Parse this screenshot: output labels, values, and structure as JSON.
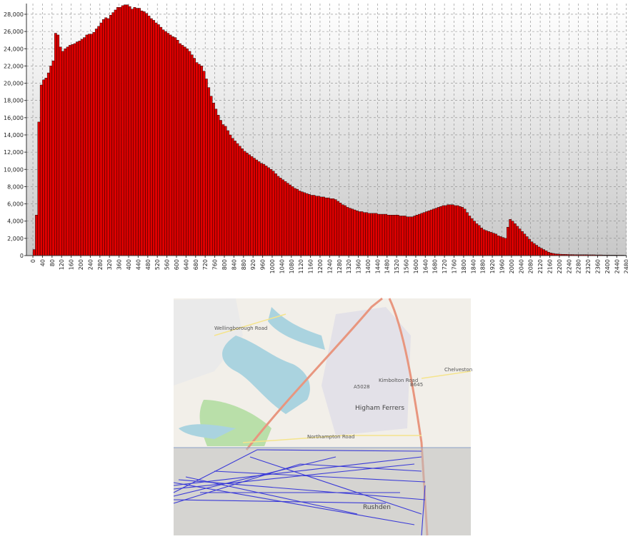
{
  "chart_data": {
    "type": "histogram",
    "bins": [
      0,
      10,
      20,
      30,
      40,
      50,
      60,
      70,
      80,
      90,
      100,
      110,
      120,
      130,
      140,
      150,
      160,
      170,
      180,
      190,
      200,
      210,
      220,
      230,
      240,
      250,
      260,
      270,
      280,
      290,
      300,
      310,
      320,
      330,
      340,
      350,
      360,
      370,
      380,
      390,
      400,
      410,
      420,
      430,
      440,
      450,
      460,
      470,
      480,
      490,
      500,
      510,
      520,
      530,
      540,
      550,
      560,
      570,
      580,
      590,
      600,
      610,
      620,
      630,
      640,
      650,
      660,
      670,
      680,
      690,
      700,
      710,
      720,
      730,
      740,
      750,
      760,
      770,
      780,
      790,
      800,
      810,
      820,
      830,
      840,
      850,
      860,
      870,
      880,
      890,
      900,
      910,
      920,
      930,
      940,
      950,
      960,
      970,
      980,
      990,
      1000,
      1010,
      1020,
      1030,
      1040,
      1050,
      1060,
      1070,
      1080,
      1090,
      1100,
      1110,
      1120,
      1130,
      1140,
      1150,
      1160,
      1170,
      1180,
      1190,
      1200,
      1210,
      1220,
      1230,
      1240,
      1250,
      1260,
      1270,
      1280,
      1290,
      1300,
      1310,
      1320,
      1330,
      1340,
      1350,
      1360,
      1370,
      1380,
      1390,
      1400,
      1410,
      1420,
      1430,
      1440,
      1450,
      1460,
      1470,
      1480,
      1490,
      1500,
      1510,
      1520,
      1530,
      1540,
      1550,
      1560,
      1570,
      1580,
      1590,
      1600,
      1610,
      1620,
      1630,
      1640,
      1650,
      1660,
      1670,
      1680,
      1690,
      1700,
      1710,
      1720,
      1730,
      1740,
      1750,
      1760,
      1770,
      1780,
      1790,
      1800,
      1810,
      1820,
      1830,
      1840,
      1850,
      1860,
      1870,
      1880,
      1890,
      1900,
      1910,
      1920,
      1930,
      1940,
      1950,
      1960,
      1970,
      1980,
      1990,
      2000,
      2010,
      2020,
      2030,
      2040,
      2050,
      2060,
      2070,
      2080,
      2090,
      2100,
      2110,
      2120,
      2130,
      2140,
      2150,
      2160,
      2170,
      2180,
      2190,
      2200,
      2210,
      2220,
      2230,
      2240,
      2250,
      2260,
      2270,
      2280,
      2290,
      2300,
      2310,
      2320,
      2330,
      2340,
      2350,
      2360,
      2370,
      2380,
      2390,
      2400,
      2410,
      2420,
      2430,
      2440,
      2450,
      2460,
      2470,
      2480
    ],
    "values": [
      700,
      4700,
      15500,
      19800,
      20400,
      20600,
      21200,
      22000,
      22600,
      25800,
      25600,
      24200,
      23700,
      24000,
      24200,
      24400,
      24500,
      24600,
      24800,
      24900,
      25100,
      25300,
      25600,
      25700,
      25700,
      25900,
      26300,
      26600,
      27000,
      27400,
      27600,
      27500,
      27900,
      28200,
      28500,
      28800,
      28800,
      29000,
      29100,
      29100,
      28900,
      28600,
      28800,
      28700,
      28700,
      28400,
      28300,
      28100,
      27800,
      27500,
      27300,
      27000,
      26800,
      26500,
      26200,
      26000,
      25800,
      25600,
      25400,
      25300,
      25000,
      24600,
      24400,
      24200,
      24000,
      23700,
      23300,
      22900,
      22400,
      22200,
      22000,
      21400,
      20500,
      19500,
      18500,
      17700,
      17000,
      16300,
      15700,
      15200,
      15000,
      14500,
      14000,
      13600,
      13300,
      13000,
      12700,
      12400,
      12100,
      11900,
      11700,
      11500,
      11300,
      11100,
      10900,
      10700,
      10600,
      10400,
      10200,
      10000,
      9800,
      9500,
      9200,
      9000,
      8800,
      8600,
      8400,
      8200,
      8000,
      7800,
      7700,
      7500,
      7400,
      7300,
      7200,
      7100,
      7000,
      7000,
      6900,
      6900,
      6800,
      6800,
      6700,
      6700,
      6600,
      6600,
      6500,
      6300,
      6100,
      5900,
      5800,
      5600,
      5500,
      5400,
      5300,
      5200,
      5100,
      5100,
      5000,
      5000,
      4900,
      4900,
      4900,
      4900,
      4800,
      4800,
      4800,
      4800,
      4700,
      4700,
      4700,
      4700,
      4700,
      4600,
      4600,
      4600,
      4500,
      4500,
      4500,
      4600,
      4700,
      4800,
      4900,
      5000,
      5100,
      5200,
      5300,
      5400,
      5500,
      5600,
      5700,
      5800,
      5800,
      5900,
      5900,
      5900,
      5800,
      5800,
      5700,
      5600,
      5400,
      5000,
      4600,
      4300,
      4000,
      3700,
      3500,
      3200,
      3000,
      2900,
      2800,
      2700,
      2600,
      2500,
      2300,
      2200,
      2100,
      2000,
      3300,
      4200,
      4000,
      3700,
      3400,
      3100,
      2800,
      2500,
      2200,
      1900,
      1600,
      1400,
      1200,
      1000,
      850,
      700,
      550,
      400,
      300,
      250,
      200,
      180,
      160,
      150,
      140,
      130,
      120,
      120,
      110,
      110,
      100,
      100,
      100,
      100,
      90,
      90,
      90,
      80,
      80,
      80,
      70,
      70,
      70,
      60,
      60,
      60,
      50,
      50,
      50,
      40
    ],
    "color": "#e00000",
    "xlim": [
      -27,
      2481
    ],
    "ylim": [
      0,
      29240
    ],
    "xticks": [
      0,
      40,
      80,
      120,
      160,
      200,
      240,
      280,
      320,
      360,
      400,
      440,
      480,
      520,
      560,
      600,
      640,
      680,
      720,
      760,
      800,
      840,
      880,
      920,
      960,
      1000,
      1040,
      1080,
      1120,
      1160,
      1200,
      1240,
      1280,
      1320,
      1360,
      1400,
      1440,
      1480,
      1520,
      1560,
      1600,
      1640,
      1680,
      1720,
      1760,
      1800,
      1840,
      1880,
      1920,
      1960,
      2000,
      2040,
      2080,
      2120,
      2160,
      2200,
      2240,
      2280,
      2320,
      2360,
      2400,
      2440,
      2480
    ],
    "yticks": [
      0,
      {
        "value": 2000,
        "label": "2,000"
      },
      {
        "value": 4000,
        "label": "4,000"
      },
      {
        "value": 6000,
        "label": "6,000"
      },
      {
        "value": 8000,
        "label": "8,000"
      },
      {
        "value": 10000,
        "label": "10,000"
      },
      {
        "value": 12000,
        "label": "12,000"
      },
      {
        "value": 14000,
        "label": "14,000"
      },
      {
        "value": 16000,
        "label": "16,000"
      },
      {
        "value": 18000,
        "label": "18,000"
      },
      {
        "value": 20000,
        "label": "20,000"
      },
      {
        "value": 22000,
        "label": "22,000"
      },
      {
        "value": 24000,
        "label": "24,000"
      },
      {
        "value": 26000,
        "label": "26,000"
      },
      {
        "value": 28000,
        "label": "28,000"
      }
    ],
    "grid": true
  },
  "map": {
    "labels": [
      "Higham Ferrers",
      "Rushden",
      "B645",
      "A5028",
      "Kimbolton Road",
      "Northampton Road",
      "Wellingborough Road",
      "Chelveston"
    ]
  }
}
